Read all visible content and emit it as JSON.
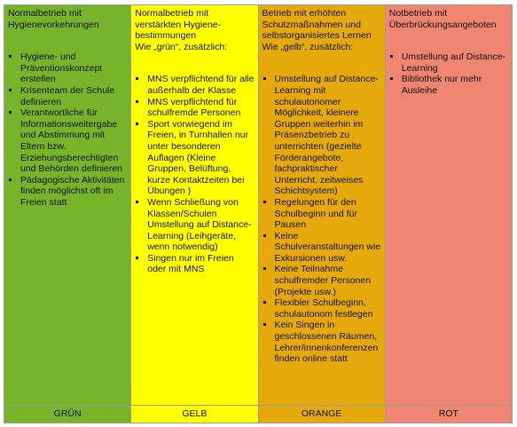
{
  "columns": [
    {
      "header": [
        "Normalbetrieb mit Hygienevorkehrungen"
      ],
      "items": [
        "Hygiene- und Präventionskonzept erstellen",
        "Krisenteam der Schule definieren",
        "Verantwortliche für Informationsweitergabe und Abstimmung mit Eltern bzw. Erziehungsberechtigten und Behörden definieren",
        "Pädagogische Aktivitäten finden möglichst oft im Freien statt"
      ],
      "label": "GRÜN"
    },
    {
      "header": [
        "Normalbetrieb mit verstärkten Hygiene-bestimmungen",
        "Wie „grün“, zusätzlich:"
      ],
      "items": [
        "MNS verpflichtend für alle außerhalb der Klasse",
        "MNS verpflichtend für schulfremde Personen",
        "Sport vorwiegend im Freien, in Turnhallen nur unter besonderen Auflagen (Kleine Gruppen, Belüftung, kurze Kontaktzeiten bei Übungen )",
        "Wenn Schließung von Klassen/Schulen Umstellung auf Distance-Learning (Leihgeräte, wenn notwendig)",
        "Singen nur im Freien oder mit MNS"
      ],
      "label": "GELB"
    },
    {
      "header": [
        "Betrieb mit erhöhten Schutzmaßnahmen und selbstorganisiertes Lernen",
        "Wie „gelb“, zusätzlich:"
      ],
      "items": [
        "Umstellung auf Distance-Learning mit schulautonomer Möglichkeit, kleinere Gruppen weiterhin im Präsenzbetrieb zu unterrichten (gezielte Förderangebote, fachpraktischer Unterricht, zeitweises Schichtsystem)",
        "Regelungen für den Schulbeginn und für Pausen",
        "Keine Schulveranstaltungen wie Exkursionen usw.",
        "Keine Teilnahme schulfremder Personen (Projekte usw.)",
        "Flexibler Schulbeginn, schulautonom festlegen",
        "Kein Singen in geschlossenen Räumen, Lehrer/innenkonferenzen finden online statt"
      ],
      "label": "ORANGE"
    },
    {
      "header": [
        "Notbetrieb mit Überbrückungsangeboten"
      ],
      "items": [
        "Umstellung auf Distance-Learning",
        "Bibliothek nur mehr Ausleihe"
      ],
      "label": "ROT"
    }
  ]
}
